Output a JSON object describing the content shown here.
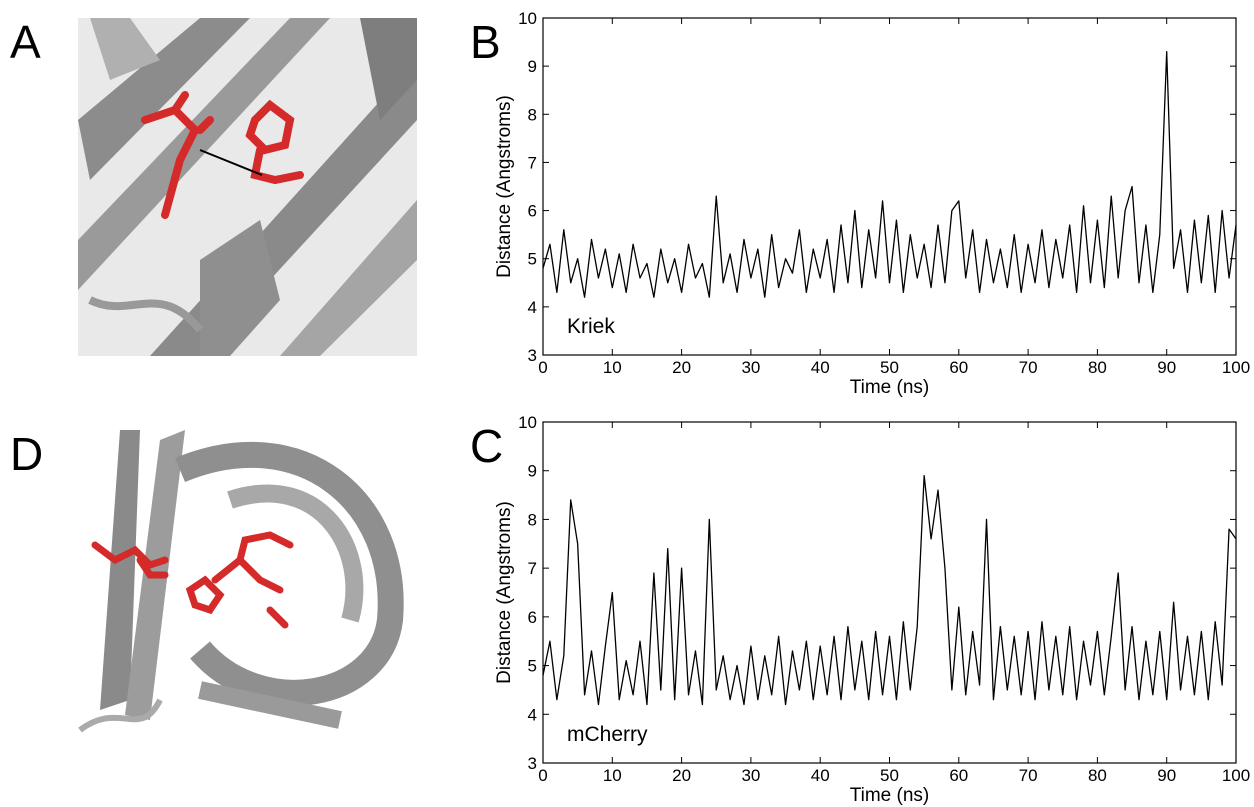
{
  "images": [
    {
      "label": "A"
    },
    {
      "label": "D"
    }
  ],
  "chart_data": [
    {
      "type": "line",
      "panel_label": "B",
      "annotation": "Kriek",
      "x_label": "Time (ns)",
      "y_label": "Distance (Angstroms)",
      "xlim": [
        0,
        100
      ],
      "ylim": [
        3,
        10
      ],
      "xticks": [
        0,
        10,
        20,
        30,
        40,
        50,
        60,
        70,
        80,
        90,
        100
      ],
      "yticks": [
        3,
        4,
        5,
        6,
        7,
        8,
        9,
        10
      ],
      "color": "#000000",
      "x": [
        0,
        1,
        2,
        3,
        4,
        5,
        6,
        7,
        8,
        9,
        10,
        11,
        12,
        13,
        14,
        15,
        16,
        17,
        18,
        19,
        20,
        21,
        22,
        23,
        24,
        25,
        26,
        27,
        28,
        29,
        30,
        31,
        32,
        33,
        34,
        35,
        36,
        37,
        38,
        39,
        40,
        41,
        42,
        43,
        44,
        45,
        46,
        47,
        48,
        49,
        50,
        51,
        52,
        53,
        54,
        55,
        56,
        57,
        58,
        59,
        60,
        61,
        62,
        63,
        64,
        65,
        66,
        67,
        68,
        69,
        70,
        71,
        72,
        73,
        74,
        75,
        76,
        77,
        78,
        79,
        80,
        81,
        82,
        83,
        84,
        85,
        86,
        87,
        88,
        89,
        90,
        91,
        92,
        93,
        94,
        95,
        96,
        97,
        98,
        99,
        100
      ],
      "values": [
        4.8,
        5.3,
        4.3,
        5.6,
        4.5,
        5.0,
        4.2,
        5.4,
        4.6,
        5.2,
        4.4,
        5.1,
        4.3,
        5.3,
        4.6,
        4.9,
        4.2,
        5.2,
        4.5,
        5.0,
        4.3,
        5.3,
        4.6,
        4.9,
        4.2,
        6.3,
        4.5,
        5.1,
        4.3,
        5.4,
        4.6,
        5.2,
        4.2,
        5.5,
        4.4,
        5.0,
        4.7,
        5.6,
        4.3,
        5.2,
        4.6,
        5.4,
        4.3,
        5.7,
        4.5,
        6.0,
        4.4,
        5.6,
        4.6,
        6.2,
        4.5,
        5.8,
        4.3,
        5.5,
        4.6,
        5.3,
        4.4,
        5.7,
        4.5,
        6.0,
        6.2,
        4.6,
        5.6,
        4.3,
        5.4,
        4.5,
        5.2,
        4.4,
        5.5,
        4.3,
        5.3,
        4.5,
        5.6,
        4.4,
        5.4,
        4.6,
        5.7,
        4.3,
        6.1,
        4.5,
        5.8,
        4.4,
        6.3,
        4.6,
        6.0,
        6.5,
        4.5,
        5.7,
        4.3,
        5.5,
        9.3,
        4.8,
        5.6,
        4.3,
        5.8,
        4.5,
        5.9,
        4.3,
        6.0,
        4.6,
        5.7
      ]
    },
    {
      "type": "line",
      "panel_label": "C",
      "annotation": "mCherry",
      "x_label": "Time (ns)",
      "y_label": "Distance (Angstroms)",
      "xlim": [
        0,
        100
      ],
      "ylim": [
        3,
        10
      ],
      "xticks": [
        0,
        10,
        20,
        30,
        40,
        50,
        60,
        70,
        80,
        90,
        100
      ],
      "yticks": [
        3,
        4,
        5,
        6,
        7,
        8,
        9,
        10
      ],
      "color": "#000000",
      "x": [
        0,
        1,
        2,
        3,
        4,
        5,
        6,
        7,
        8,
        9,
        10,
        11,
        12,
        13,
        14,
        15,
        16,
        17,
        18,
        19,
        20,
        21,
        22,
        23,
        24,
        25,
        26,
        27,
        28,
        29,
        30,
        31,
        32,
        33,
        34,
        35,
        36,
        37,
        38,
        39,
        40,
        41,
        42,
        43,
        44,
        45,
        46,
        47,
        48,
        49,
        50,
        51,
        52,
        53,
        54,
        55,
        56,
        57,
        58,
        59,
        60,
        61,
        62,
        63,
        64,
        65,
        66,
        67,
        68,
        69,
        70,
        71,
        72,
        73,
        74,
        75,
        76,
        77,
        78,
        79,
        80,
        81,
        82,
        83,
        84,
        85,
        86,
        87,
        88,
        89,
        90,
        91,
        92,
        93,
        94,
        95,
        96,
        97,
        98,
        99,
        100
      ],
      "values": [
        4.8,
        5.5,
        4.3,
        5.2,
        8.4,
        7.5,
        4.4,
        5.3,
        4.2,
        5.4,
        6.5,
        4.3,
        5.1,
        4.4,
        5.5,
        4.2,
        6.9,
        4.5,
        7.4,
        4.3,
        7.0,
        4.4,
        5.3,
        4.2,
        8.0,
        4.5,
        5.2,
        4.3,
        5.0,
        4.2,
        5.4,
        4.3,
        5.2,
        4.4,
        5.6,
        4.2,
        5.3,
        4.5,
        5.5,
        4.3,
        5.4,
        4.4,
        5.6,
        4.3,
        5.8,
        4.5,
        5.5,
        4.3,
        5.7,
        4.4,
        5.6,
        4.3,
        5.9,
        4.5,
        5.8,
        8.9,
        7.6,
        8.6,
        7.0,
        4.5,
        6.2,
        4.4,
        5.7,
        4.6,
        8.0,
        4.3,
        5.8,
        4.5,
        5.6,
        4.4,
        5.7,
        4.3,
        5.9,
        4.5,
        5.6,
        4.4,
        5.8,
        4.3,
        5.5,
        4.6,
        5.7,
        4.4,
        5.6,
        6.9,
        4.5,
        5.8,
        4.3,
        5.5,
        4.4,
        5.7,
        4.3,
        6.3,
        4.5,
        5.6,
        4.4,
        5.7,
        4.3,
        5.9,
        4.6,
        7.8,
        7.6
      ]
    }
  ]
}
